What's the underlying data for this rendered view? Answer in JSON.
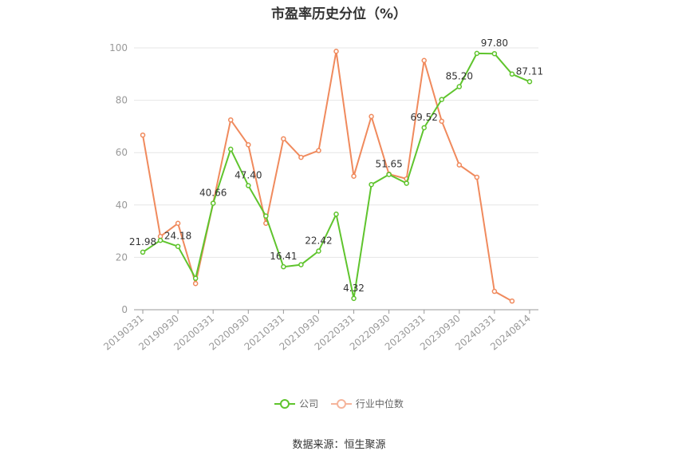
{
  "chart_data": {
    "type": "line",
    "title": "市盈率历史分位（%）",
    "x": [
      "20190331",
      "20190630",
      "20190930",
      "20191231",
      "20200331",
      "20200630",
      "20200930",
      "20201231",
      "20210331",
      "20210630",
      "20210930",
      "20211231",
      "20220331",
      "20220630",
      "20220930",
      "20221231",
      "20230331",
      "20230630",
      "20230930",
      "20231231",
      "20240331",
      "20240630",
      "20240814"
    ],
    "x_tick_labels": [
      "20190331",
      "20190930",
      "20200331",
      "20200930",
      "20210331",
      "20210930",
      "20220331",
      "20220930",
      "20230331",
      "20230930",
      "20240331",
      "20240814"
    ],
    "ylim": [
      0,
      100
    ],
    "y_ticks": [
      0,
      20,
      40,
      60,
      80,
      100
    ],
    "grid": true,
    "legend_position": "bottom",
    "series": [
      {
        "name": "公司",
        "color": "#5fc42d",
        "values": [
          21.98,
          26.5,
          24.18,
          12.0,
          40.66,
          61.3,
          47.4,
          35.8,
          16.41,
          17.2,
          22.42,
          36.5,
          4.32,
          47.8,
          51.65,
          48.3,
          69.52,
          80.3,
          85.2,
          97.9,
          97.8,
          90.0,
          87.11
        ],
        "data_labels": [
          "21.98",
          "",
          "24.18",
          "",
          "40.66",
          "",
          "47.40",
          "",
          "16.41",
          "",
          "22.42",
          "",
          "4.32",
          "",
          "51.65",
          "",
          "69.52",
          "",
          "85.20",
          "",
          "97.80",
          "",
          "87.11"
        ]
      },
      {
        "name": "行业中位数",
        "color": "#f08a5d",
        "values": [
          66.7,
          28.0,
          33.0,
          10.0,
          40.7,
          72.5,
          63.0,
          33.0,
          65.3,
          58.2,
          60.8,
          98.7,
          51.0,
          73.8,
          51.8,
          50.0,
          95.2,
          72.0,
          55.3,
          50.6,
          7.0,
          3.3,
          null
        ]
      }
    ]
  },
  "legend": {
    "company": "公司",
    "industry": "行业中位数"
  },
  "source": "数据来源：恒生聚源"
}
